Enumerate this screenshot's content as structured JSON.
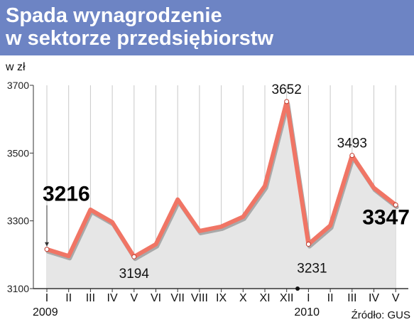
{
  "header": {
    "title_line1": "Spada wynagrodzenie",
    "title_line2": "w sektorze przedsiębiorstw",
    "background": "#6d84c4"
  },
  "source": "Źródło: GUS",
  "chart_data": {
    "type": "line",
    "unit_label": "w zł",
    "categories": [
      "I",
      "II",
      "III",
      "IV",
      "V",
      "VI",
      "VII",
      "VIII",
      "IX",
      "X",
      "XI",
      "XII",
      "I",
      "II",
      "III",
      "IV",
      "V"
    ],
    "year_labels": [
      {
        "index": 0,
        "text": "2009"
      },
      {
        "index": 12,
        "text": "2010"
      }
    ],
    "values": [
      3216,
      3196,
      3333,
      3296,
      3194,
      3231,
      3363,
      3270,
      3283,
      3312,
      3403,
      3652,
      3231,
      3286,
      3493,
      3397,
      3347
    ],
    "ylim": [
      3100,
      3700
    ],
    "yticks": [
      3100,
      3300,
      3500,
      3700
    ],
    "data_labels": [
      {
        "index": 0,
        "text": "3216",
        "style": "big"
      },
      {
        "index": 4,
        "text": "3194",
        "style": "normal"
      },
      {
        "index": 11,
        "text": "3652",
        "style": "normal"
      },
      {
        "index": 12,
        "text": "3231",
        "style": "normal"
      },
      {
        "index": 14,
        "text": "3493",
        "style": "normal"
      },
      {
        "index": 16,
        "text": "3347",
        "style": "big"
      }
    ],
    "grid": "vertical",
    "line_color": "#f07565",
    "area_color": "#e6e6e6",
    "grid_color": "#c8c8c8"
  }
}
